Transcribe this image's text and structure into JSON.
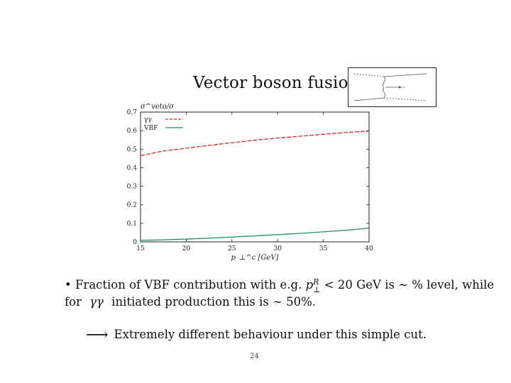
{
  "slide": {
    "title": "Vector boson fusion",
    "page_number": "24"
  },
  "bullet": {
    "line1_before": "Fraction of VBF contribution with e.g.",
    "line1_math": "p",
    "line1_math_sub": "⊥",
    "line1_math_sup": "R",
    "line1_after": "< 20 GeV is ∼ % level, while",
    "line2_before": "for",
    "line2_math": "γγ",
    "line2_after": "initiated production this is ∼ 50%."
  },
  "conclusion": {
    "arrow": "⟶",
    "text": "Extremely different behaviour under this simple cut."
  },
  "chart_data": {
    "type": "line",
    "ylabel": "σ^veto/σ",
    "xlabel": "p_⊥^c [GeV]",
    "xlim": [
      15,
      40
    ],
    "ylim": [
      0,
      0.7
    ],
    "x_ticks": [
      "15",
      "20",
      "25",
      "30",
      "35",
      "40"
    ],
    "y_ticks": [
      "0",
      "0.1",
      "0.2",
      "0.3",
      "0.4",
      "0.5",
      "0.6",
      "0.7"
    ],
    "legend_placement": "top-left",
    "grid": false,
    "series": [
      {
        "name": "γγ",
        "color": "#d42a2a",
        "dashed": true,
        "x": [
          15,
          17.5,
          20,
          22.5,
          25,
          27.5,
          30,
          32.5,
          35,
          37.5,
          40
        ],
        "y": [
          0.465,
          0.49,
          0.505,
          0.52,
          0.535,
          0.548,
          0.56,
          0.57,
          0.58,
          0.59,
          0.598
        ]
      },
      {
        "name": "VBF",
        "color": "#1a8f6e",
        "dashed": false,
        "x": [
          15,
          17.5,
          20,
          22.5,
          25,
          27.5,
          30,
          32.5,
          35,
          37.5,
          40
        ],
        "y": [
          0.008,
          0.011,
          0.015,
          0.02,
          0.026,
          0.032,
          0.039,
          0.046,
          0.054,
          0.063,
          0.074
        ]
      }
    ]
  }
}
